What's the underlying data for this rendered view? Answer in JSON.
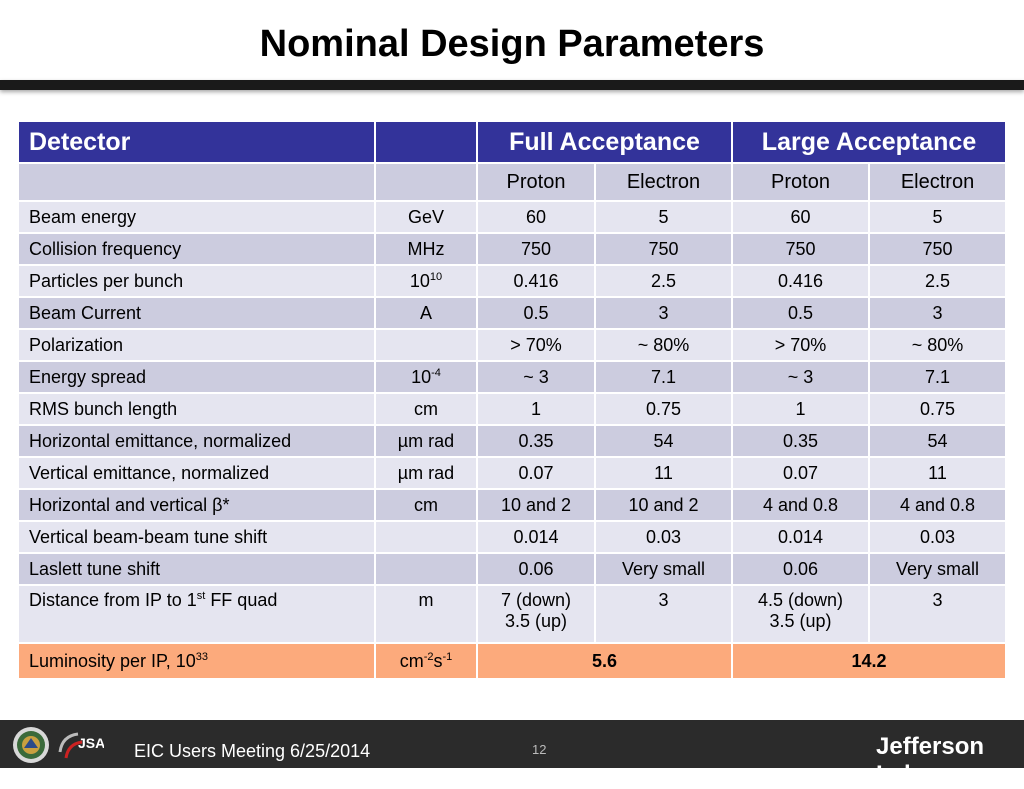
{
  "slide": {
    "title": "Nominal Design Parameters",
    "footer_text": "EIC Users Meeting 6/25/2014",
    "page_number": "12",
    "logo_right_text": "Jefferson Lab",
    "logo_mid_text": "JSA"
  },
  "table": {
    "header": {
      "detector": "Detector",
      "unit": "",
      "full": "Full Acceptance",
      "large": "Large Acceptance"
    },
    "subheader": [
      "Proton",
      "Electron",
      "Proton",
      "Electron"
    ],
    "rows": [
      {
        "label": "Beam energy",
        "unit": "GeV",
        "v": [
          "60",
          "5",
          "60",
          "5"
        ]
      },
      {
        "label": "Collision frequency",
        "unit": "MHz",
        "v": [
          "750",
          "750",
          "750",
          "750"
        ]
      },
      {
        "label": "Particles per bunch",
        "unit_base": "10",
        "unit_sup": "10",
        "v": [
          "0.416",
          "2.5",
          "0.416",
          "2.5"
        ]
      },
      {
        "label": "Beam Current",
        "unit": "A",
        "v": [
          "0.5",
          "3",
          "0.5",
          "3"
        ]
      },
      {
        "label": "Polarization",
        "unit": "",
        "v": [
          "> 70%",
          "~ 80%",
          "> 70%",
          "~ 80%"
        ]
      },
      {
        "label": "Energy spread",
        "unit_base": "10",
        "unit_sup": "-4",
        "v": [
          "~ 3",
          "7.1",
          "~ 3",
          "7.1"
        ]
      },
      {
        "label": "RMS bunch length",
        "unit": "cm",
        "v": [
          "1",
          "0.75",
          "1",
          "0.75"
        ]
      },
      {
        "label": "Horizontal emittance, normalized",
        "unit": "µm rad",
        "v": [
          "0.35",
          "54",
          "0.35",
          "54"
        ]
      },
      {
        "label": "Vertical emittance, normalized",
        "unit": "µm rad",
        "v": [
          "0.07",
          "11",
          "0.07",
          "11"
        ]
      },
      {
        "label": "Horizontal and vertical β*",
        "unit": "cm",
        "v": [
          "10 and 2",
          "10 and 2",
          "4 and 0.8",
          "4 and 0.8"
        ]
      },
      {
        "label": "Vertical beam-beam tune shift",
        "unit": "",
        "v": [
          "0.014",
          "0.03",
          "0.014",
          "0.03"
        ]
      },
      {
        "label": "Laslett tune shift",
        "unit": "",
        "v": [
          "0.06",
          "Very small",
          "0.06",
          "Very small"
        ]
      }
    ],
    "distance_row": {
      "label_pre": "Distance from IP to 1",
      "label_sup": "st",
      "label_post": " FF quad",
      "unit": "m",
      "v0_line1": "7 (down)",
      "v0_line2": "3.5 (up)",
      "v1": "3",
      "v2_line1": "4.5 (down)",
      "v2_line2": "3.5 (up)",
      "v3": "3"
    },
    "luminosity_row": {
      "label_pre": "Luminosity per IP, 10",
      "label_sup": "33",
      "unit_cm": "cm",
      "unit_cm_sup": "-2",
      "unit_s": "s",
      "unit_s_sup": "-1",
      "full": "5.6",
      "large": "14.2"
    }
  },
  "colors": {
    "header_bg": "#33339a",
    "row_light": "#e5e5f0",
    "row_dark": "#ccccdf",
    "luminosity_bg": "#fcaa7c",
    "footer_bg": "#2b2b2b"
  }
}
